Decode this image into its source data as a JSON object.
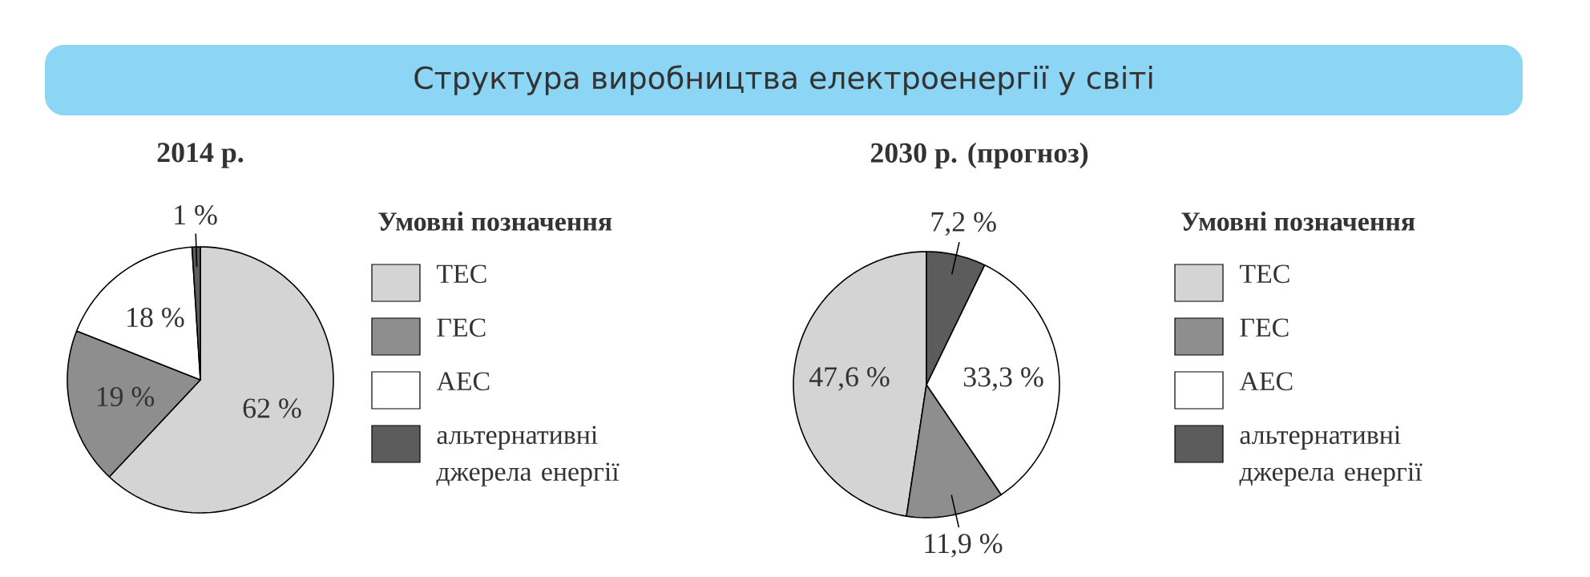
{
  "chart_data": [
    {
      "type": "pie",
      "title": "Структура виробництва електроенергії у світі",
      "subtitle": "2014 р.",
      "legend_title": "Умовні позначення",
      "legend": "right",
      "categories": [
        "ТЕС",
        "ГЕС",
        "АЕС",
        "альтернативні джерела енергії"
      ],
      "values": [
        62,
        19,
        18,
        1
      ],
      "colors": [
        "#d4d4d4",
        "#8e8e8e",
        "#ffffff",
        "#5c5c5c"
      ],
      "value_labels": [
        "62 %",
        "19 %",
        "18 %",
        "1 %"
      ]
    },
    {
      "type": "pie",
      "subtitle": "2030 р. (прогноз)",
      "legend_title": "Умовні позначення",
      "legend": "right",
      "categories": [
        "ТЕС",
        "ГЕС",
        "АЕС",
        "альтернативні джерела енергії"
      ],
      "values": [
        47.6,
        11.9,
        33.3,
        7.2
      ],
      "colors": [
        "#d4d4d4",
        "#8e8e8e",
        "#ffffff",
        "#5c5c5c"
      ],
      "value_labels": [
        "47,6 %",
        "11,9 %",
        "33,3 %",
        "7,2 %"
      ]
    }
  ]
}
